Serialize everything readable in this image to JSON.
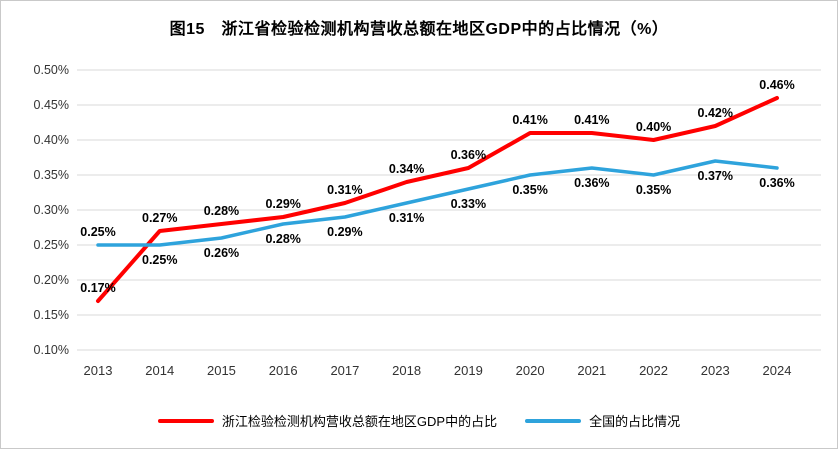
{
  "chart_data": {
    "type": "line",
    "title": "图15　浙江省检验检测机构营收总额在地区GDP中的占比情况（%）",
    "categories": [
      "2013",
      "2014",
      "2015",
      "2016",
      "2017",
      "2018",
      "2019",
      "2020",
      "2021",
      "2022",
      "2023",
      "2024"
    ],
    "series": [
      {
        "id": "zhejiang",
        "name": "浙江检验检测机构营收总额在地区GDP中的占比",
        "color": "#FF0000",
        "values": [
          0.17,
          0.27,
          0.28,
          0.29,
          0.31,
          0.34,
          0.36,
          0.41,
          0.41,
          0.4,
          0.42,
          0.46
        ],
        "labels": [
          "0.17%",
          "0.27%",
          "0.28%",
          "0.29%",
          "0.31%",
          "0.34%",
          "0.36%",
          "0.41%",
          "0.41%",
          "0.40%",
          "0.42%",
          "0.46%"
        ],
        "label_sides": [
          "above",
          "above",
          "above",
          "above",
          "above",
          "above",
          "above",
          "above",
          "above",
          "above",
          "above",
          "above"
        ]
      },
      {
        "id": "national",
        "name": "全国的占比情况",
        "color": "#2EA3DC",
        "values": [
          0.25,
          0.25,
          0.26,
          0.28,
          0.29,
          0.31,
          0.33,
          0.35,
          0.36,
          0.35,
          0.37,
          0.36
        ],
        "labels": [
          "0.25%",
          "0.25%",
          "0.26%",
          "0.28%",
          "0.29%",
          "0.31%",
          "0.33%",
          "0.35%",
          "0.36%",
          "0.35%",
          "0.37%",
          "0.36%"
        ],
        "label_sides": [
          "above",
          "below",
          "below",
          "below",
          "below",
          "below",
          "below",
          "below",
          "below",
          "below",
          "below",
          "below"
        ]
      }
    ],
    "ylim": [
      0.1,
      0.5
    ],
    "yticks": [
      {
        "value": 0.1,
        "label": "0.10%"
      },
      {
        "value": 0.15,
        "label": "0.15%"
      },
      {
        "value": 0.2,
        "label": "0.20%"
      },
      {
        "value": 0.25,
        "label": "0.25%"
      },
      {
        "value": 0.3,
        "label": "0.30%"
      },
      {
        "value": 0.35,
        "label": "0.35%"
      },
      {
        "value": 0.4,
        "label": "0.40%"
      },
      {
        "value": 0.45,
        "label": "0.45%"
      },
      {
        "value": 0.5,
        "label": "0.50%"
      }
    ],
    "grid": true,
    "legend_position": "bottom"
  }
}
